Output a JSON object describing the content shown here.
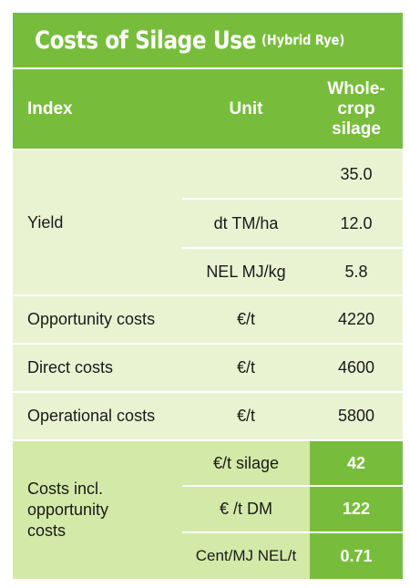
{
  "title": {
    "main": "Costs of Silage Use",
    "sub": "(Hybrid Rye)"
  },
  "headers": {
    "index": "Index",
    "unit": "Unit",
    "crop_line1": "Whole-",
    "crop_line2": "crop",
    "crop_line3": "silage"
  },
  "yield": {
    "label": "Yield",
    "rows": [
      {
        "unit": "",
        "value": "35.0"
      },
      {
        "unit": "dt TM/ha",
        "value": "12.0"
      },
      {
        "unit": "NEL MJ/kg",
        "value": "5.8"
      }
    ]
  },
  "rows": [
    {
      "label": "Opportunity costs",
      "unit": "€/t",
      "value": "4220"
    },
    {
      "label": "Direct costs",
      "unit": "€/t",
      "value": "4600"
    },
    {
      "label": "Operational costs",
      "unit": "€/t",
      "value": "5800"
    }
  ],
  "incl": {
    "label_l1": "Costs incl.",
    "label_l2": "opportunity",
    "label_l3": "costs",
    "rows": [
      {
        "unit": "€/t silage",
        "value": "42"
      },
      {
        "unit": "€ /t DM",
        "value": "122"
      },
      {
        "unit": "Cent/MJ NEL/t",
        "value": "0.71"
      }
    ]
  },
  "colors": {
    "header_green": "#77bd3b",
    "light_green": "#e9f3d2",
    "mid_green": "#d3e9a8"
  }
}
